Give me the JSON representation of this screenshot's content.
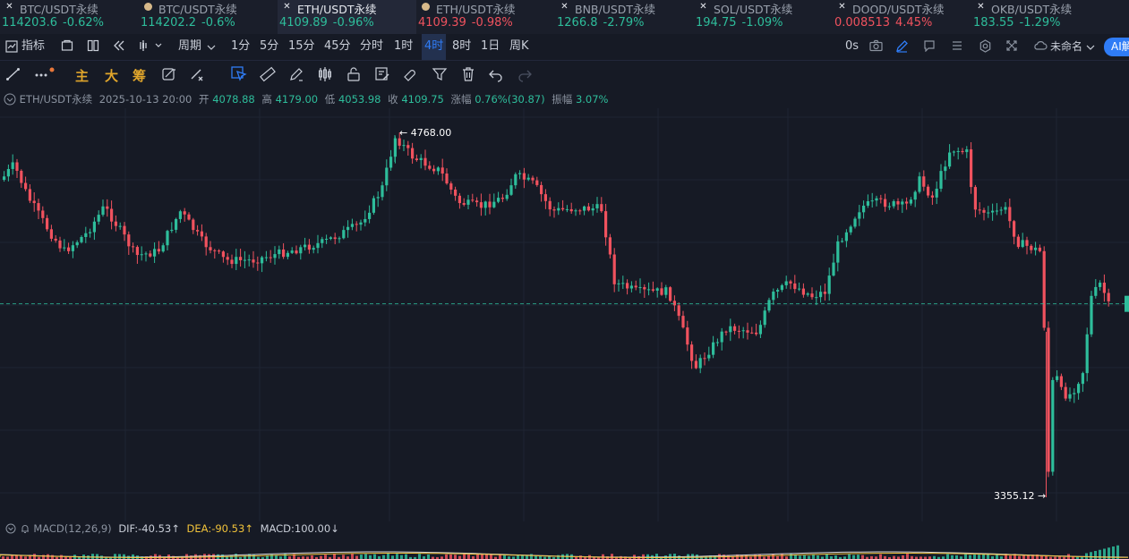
{
  "tickers": [
    {
      "symbol": "BTC/USDT永续",
      "price": "114203.6",
      "change": "-0.62%",
      "icon": "x-mark-icon",
      "price_color": "up",
      "change_color": "up"
    },
    {
      "symbol": "BTC/USDT永续",
      "price": "114202.2",
      "change": "-0.6%",
      "icon": "dot-icon",
      "price_color": "up",
      "change_color": "up"
    },
    {
      "symbol": "ETH/USDT永续",
      "price": "4109.89",
      "change": "-0.96%",
      "icon": "x-mark-icon",
      "price_color": "up",
      "change_color": "up",
      "active": true
    },
    {
      "symbol": "ETH/USDT永续",
      "price": "4109.39",
      "change": "-0.98%",
      "icon": "dot-icon",
      "price_color": "down",
      "change_color": "down"
    },
    {
      "symbol": "BNB/USDT永续",
      "price": "1266.8",
      "change": "-2.79%",
      "icon": "x-mark-icon",
      "price_color": "up",
      "change_color": "up"
    },
    {
      "symbol": "SOL/USDT永续",
      "price": "194.75",
      "change": "-1.09%",
      "icon": "x-mark-icon",
      "price_color": "up",
      "change_color": "up"
    },
    {
      "symbol": "DOOD/USDT永续",
      "price": "0.008513",
      "change": "4.45%",
      "icon": "x-mark-icon",
      "price_color": "down",
      "change_color": "down"
    },
    {
      "symbol": "OKB/USDT永续",
      "price": "183.55",
      "change": "-1.29%",
      "icon": "x-mark-icon",
      "price_color": "up",
      "change_color": "up"
    }
  ],
  "toolbar": {
    "indicators_label": "指标",
    "period_label": "周期",
    "timeframes": [
      "1分",
      "5分",
      "15分",
      "45分",
      "分时",
      "1时",
      "4时",
      "8时",
      "1日",
      "周K"
    ],
    "selected_timeframe": "4时",
    "seconds_label": "0s",
    "layout_label": "未命名",
    "ai_label": "AI解"
  },
  "drawbar": {
    "main_label": "主",
    "big_label": "大",
    "chip_label": "筹"
  },
  "info": {
    "symbol": "ETH/USDT永续",
    "datetime": "2025-10-13 20:00",
    "open_label": "开",
    "open": "4078.88",
    "high_label": "高",
    "high": "4179.00",
    "low_label": "低",
    "low": "4053.98",
    "close_label": "收",
    "close": "4109.75",
    "change_label": "涨幅",
    "change": "0.76%(30.87)",
    "amplitude_label": "振幅",
    "amplitude": "3.07%"
  },
  "chart": {
    "high_marker": "← 4768.00",
    "low_marker": "3355.12 →",
    "max_price": 4768.0,
    "min_price": 3355.12,
    "current_price": 4109.75,
    "up_color": "#2ebd9b",
    "down_color": "#f0525e"
  },
  "macd": {
    "label": "MACD(12,26,9)",
    "dif": "DIF:-40.53↑",
    "dea": "DEA:-90.53↑",
    "macd": "MACD:100.00↓"
  }
}
